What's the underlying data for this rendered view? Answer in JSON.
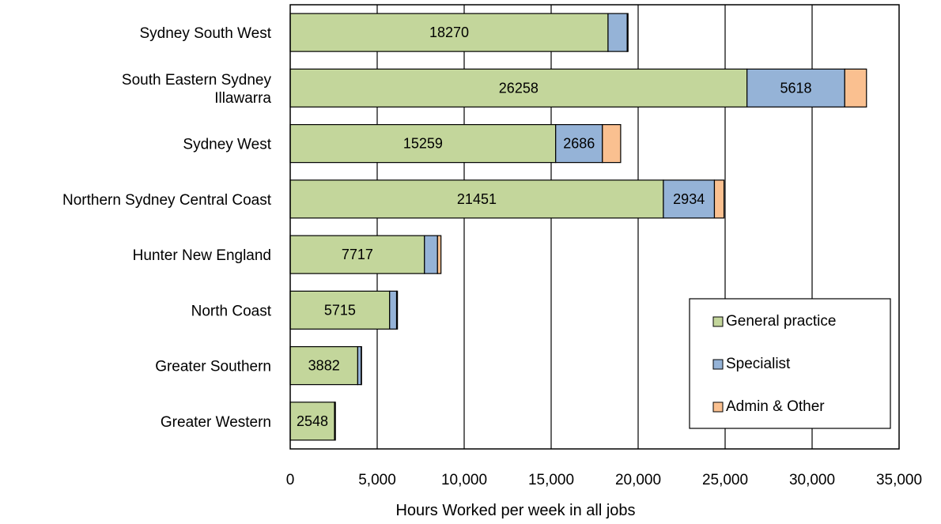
{
  "chart_data": {
    "type": "bar",
    "orientation": "horizontal",
    "stacked": true,
    "categories": [
      [
        "Sydney South West"
      ],
      [
        "South Eastern Sydney",
        "Illawarra"
      ],
      [
        "Sydney West"
      ],
      [
        "Northern Sydney Central Coast"
      ],
      [
        "Hunter New England"
      ],
      [
        "North Coast"
      ],
      [
        "Greater Southern"
      ],
      [
        "Greater Western"
      ]
    ],
    "series": [
      {
        "name": "General practice",
        "color": "#c3d69b",
        "values": [
          18270,
          26258,
          15259,
          21451,
          7717,
          5715,
          3882,
          2548
        ],
        "labels": [
          "18270",
          "26258",
          "15259",
          "21451",
          "7717",
          "5715",
          "3882",
          "2548"
        ]
      },
      {
        "name": "Specialist",
        "color": "#95b3d7",
        "values": [
          1100,
          5618,
          2686,
          2934,
          750,
          400,
          200,
          50
        ],
        "labels": [
          "",
          "5618",
          "2686",
          "2934",
          "",
          "",
          "",
          ""
        ]
      },
      {
        "name": "Admin & Other",
        "color": "#fac090",
        "values": [
          50,
          1250,
          1050,
          550,
          200,
          50,
          20,
          0
        ],
        "labels": [
          "",
          "",
          "",
          "",
          "",
          "",
          "",
          ""
        ]
      }
    ],
    "xlabel": "Hours Worked per week in all jobs",
    "xlim": [
      0,
      35000
    ],
    "xticks": [
      0,
      5000,
      10000,
      15000,
      20000,
      25000,
      30000,
      35000
    ],
    "xtick_labels": [
      "0",
      "5,000",
      "10,000",
      "15,000",
      "20,000",
      "25,000",
      "30,000",
      "35,000"
    ],
    "grid": true,
    "legend_position": "bottom-right (inside plot)"
  }
}
